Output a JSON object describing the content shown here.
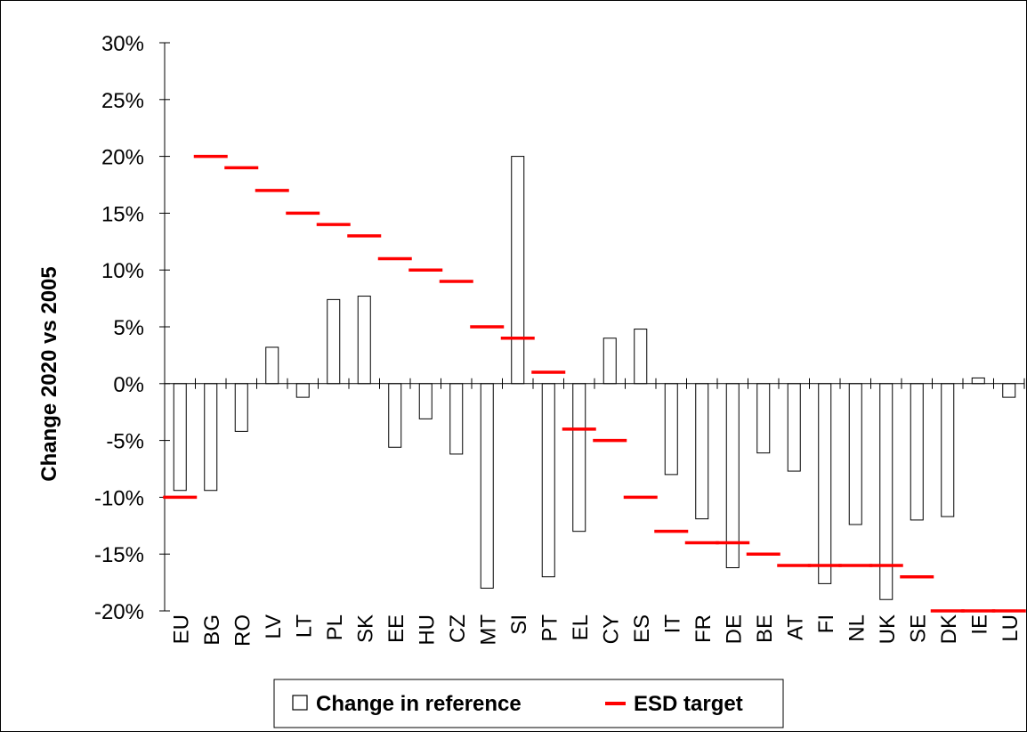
{
  "chart_data": {
    "type": "bar",
    "ylabel": "Change 2020 vs 2005",
    "xlabel": "",
    "title": "",
    "ylim": [
      -0.2,
      0.3
    ],
    "yticks": [
      0.3,
      0.25,
      0.2,
      0.15,
      0.1,
      0.05,
      0.0,
      -0.05,
      -0.1,
      -0.15,
      -0.2
    ],
    "ytick_labels": [
      "30%",
      "25%",
      "20%",
      "15%",
      "10%",
      "5%",
      "0%",
      "-5%",
      "-10%",
      "-15%",
      "-20%"
    ],
    "grid": false,
    "legend_position": "bottom",
    "categories": [
      "EU",
      "BG",
      "RO",
      "LV",
      "LT",
      "PL",
      "SK",
      "EE",
      "HU",
      "CZ",
      "MT",
      "SI",
      "PT",
      "EL",
      "CY",
      "ES",
      "IT",
      "FR",
      "DE",
      "BE",
      "AT",
      "FI",
      "NL",
      "UK",
      "SE",
      "DK",
      "IE",
      "LU"
    ],
    "series": [
      {
        "name": "Change in reference",
        "kind": "bar",
        "color": "#ffffff",
        "stroke": "#000000",
        "values": [
          -0.094,
          -0.094,
          -0.042,
          0.032,
          -0.012,
          0.074,
          0.077,
          -0.056,
          -0.031,
          -0.062,
          -0.18,
          0.2,
          -0.17,
          -0.13,
          0.04,
          0.048,
          -0.08,
          -0.119,
          -0.162,
          -0.061,
          -0.077,
          -0.176,
          -0.124,
          -0.19,
          -0.12,
          -0.117,
          0.005,
          -0.012
        ]
      },
      {
        "name": "ESD target",
        "kind": "marker",
        "color": "#ff0000",
        "values": [
          -0.1,
          0.2,
          0.19,
          0.17,
          0.15,
          0.14,
          0.13,
          0.11,
          0.1,
          0.09,
          0.05,
          0.04,
          0.01,
          -0.04,
          -0.05,
          -0.1,
          -0.13,
          -0.14,
          -0.14,
          -0.15,
          -0.16,
          -0.16,
          -0.16,
          -0.16,
          -0.17,
          -0.2,
          -0.2,
          -0.2
        ]
      }
    ]
  },
  "legend": {
    "items": [
      {
        "label": "Change in reference",
        "symbol": "hollow-square-icon"
      },
      {
        "label": "ESD target",
        "symbol": "red-dash-icon"
      }
    ]
  }
}
